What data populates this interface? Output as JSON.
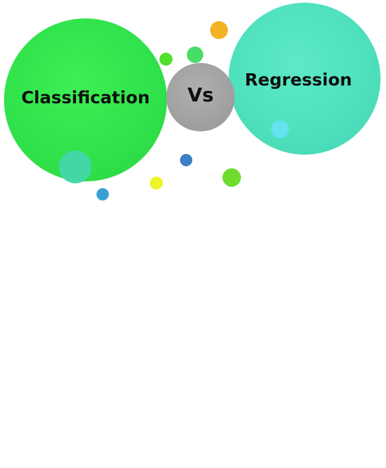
{
  "diagram": {
    "left_label": "Classification",
    "center_label": "Vs",
    "right_label": "Regression"
  },
  "colors": {
    "classification": "#2fe14a",
    "vs": "#9e9e9e",
    "regression": "#4ddfbc",
    "text": "#101010"
  }
}
